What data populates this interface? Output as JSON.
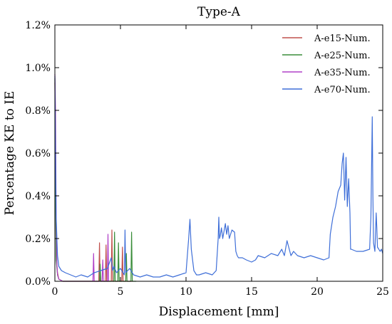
{
  "chart_data": {
    "type": "line",
    "title": "Type-A",
    "xlabel": "Displacement [mm]",
    "ylabel": "Percentage KE to IE",
    "xlim": [
      0,
      25
    ],
    "ylim": [
      0,
      1.2
    ],
    "xticks": [
      0,
      5,
      10,
      15,
      20,
      25
    ],
    "xtick_labels": [
      "0",
      "5",
      "10",
      "15",
      "20",
      "25"
    ],
    "yticks": [
      0,
      0.2,
      0.4,
      0.6,
      0.8,
      1.0,
      1.2
    ],
    "ytick_labels": [
      "0.0%",
      "0.2%",
      "0.4%",
      "0.6%",
      "0.8%",
      "1.0%",
      "1.2%"
    ],
    "grid": false,
    "legend_position": "top-right",
    "series": [
      {
        "name": "A-e15-Num.",
        "color": "#c0504d",
        "x": [
          0,
          0.05,
          0.1,
          0.2,
          0.3,
          0.6,
          1.0,
          3.2,
          3.35,
          3.4,
          3.45,
          3.6,
          3.85,
          3.9,
          3.95,
          4.1,
          4.3,
          4.35,
          4.4,
          4.6,
          5.1,
          5.15,
          5.2,
          5.4,
          5.9
        ],
        "values": [
          0.93,
          0.5,
          0.12,
          0.04,
          0.01,
          0.0,
          0.0,
          0.0,
          0.0,
          0.18,
          0.0,
          0.0,
          0.0,
          0.17,
          0.0,
          0.0,
          0.0,
          0.24,
          0.0,
          0.0,
          0.0,
          0.16,
          0.0,
          0.0,
          0.0
        ]
      },
      {
        "name": "A-e25-Num.",
        "color": "#3a8d3a",
        "x": [
          0,
          0.05,
          0.1,
          0.2,
          0.3,
          0.6,
          1.0,
          3.4,
          3.45,
          3.5,
          4.0,
          4.5,
          4.55,
          4.6,
          4.8,
          4.85,
          4.9,
          5.4,
          5.45,
          5.5,
          5.8,
          5.85,
          5.9,
          6.2
        ],
        "values": [
          0.95,
          0.4,
          0.1,
          0.03,
          0.01,
          0.0,
          0.0,
          0.0,
          0.08,
          0.0,
          0.0,
          0.0,
          0.23,
          0.0,
          0.0,
          0.18,
          0.0,
          0.0,
          0.13,
          0.0,
          0.0,
          0.23,
          0.0,
          0.0
        ]
      },
      {
        "name": "A-e35-Num.",
        "color": "#b040c8",
        "x": [
          0,
          0.05,
          0.1,
          0.15,
          0.2,
          0.3,
          0.6,
          1.0,
          2.9,
          2.95,
          3.0,
          3.6,
          3.65,
          3.7,
          4.0,
          4.05,
          4.1
        ],
        "values": [
          0.97,
          0.8,
          0.3,
          0.08,
          0.03,
          0.01,
          0.0,
          0.0,
          0.0,
          0.13,
          0.0,
          0.0,
          0.1,
          0.0,
          0.0,
          0.22,
          0.0
        ]
      },
      {
        "name": "A-e70-Num.",
        "color": "#3f6fd8",
        "x": [
          0,
          0.05,
          0.1,
          0.2,
          0.3,
          0.5,
          0.8,
          1.2,
          1.6,
          2.0,
          2.5,
          3.0,
          3.5,
          4.0,
          4.3,
          4.4,
          4.5,
          4.7,
          5.0,
          5.3,
          5.35,
          5.4,
          5.7,
          6.0,
          6.5,
          7.0,
          7.5,
          8.0,
          8.5,
          9.0,
          9.5,
          10.0,
          10.2,
          10.3,
          10.4,
          10.6,
          10.8,
          11.0,
          11.5,
          12.0,
          12.3,
          12.45,
          12.5,
          12.55,
          12.6,
          12.7,
          12.8,
          13.0,
          13.1,
          13.2,
          13.3,
          13.5,
          13.7,
          13.8,
          13.9,
          14.0,
          14.3,
          14.6,
          15.0,
          15.3,
          15.5,
          16.0,
          16.5,
          17.0,
          17.3,
          17.5,
          17.7,
          18.0,
          18.2,
          18.5,
          19.0,
          19.5,
          20.0,
          20.5,
          20.9,
          21.0,
          21.2,
          21.4,
          21.6,
          21.8,
          21.9,
          22.0,
          22.1,
          22.2,
          22.3,
          22.4,
          22.5,
          22.55,
          22.6,
          23.0,
          23.5,
          24.0,
          24.1,
          24.2,
          24.25,
          24.3,
          24.4,
          24.5,
          24.55,
          24.6,
          24.7,
          24.8,
          24.9,
          25.0
        ],
        "values": [
          0.96,
          0.6,
          0.3,
          0.12,
          0.07,
          0.05,
          0.04,
          0.03,
          0.02,
          0.03,
          0.02,
          0.04,
          0.05,
          0.06,
          0.11,
          0.05,
          0.07,
          0.04,
          0.06,
          0.03,
          0.24,
          0.04,
          0.06,
          0.03,
          0.02,
          0.03,
          0.02,
          0.02,
          0.03,
          0.02,
          0.03,
          0.04,
          0.2,
          0.29,
          0.15,
          0.05,
          0.03,
          0.03,
          0.04,
          0.03,
          0.05,
          0.2,
          0.3,
          0.2,
          0.21,
          0.25,
          0.2,
          0.27,
          0.22,
          0.26,
          0.2,
          0.24,
          0.23,
          0.14,
          0.12,
          0.11,
          0.11,
          0.1,
          0.09,
          0.1,
          0.12,
          0.11,
          0.13,
          0.12,
          0.15,
          0.12,
          0.19,
          0.12,
          0.14,
          0.12,
          0.11,
          0.12,
          0.11,
          0.1,
          0.11,
          0.22,
          0.3,
          0.35,
          0.42,
          0.45,
          0.55,
          0.6,
          0.38,
          0.58,
          0.35,
          0.48,
          0.32,
          0.15,
          0.15,
          0.14,
          0.14,
          0.15,
          0.3,
          0.77,
          0.4,
          0.18,
          0.14,
          0.32,
          0.25,
          0.16,
          0.15,
          0.14,
          0.15,
          0.13
        ]
      }
    ]
  }
}
